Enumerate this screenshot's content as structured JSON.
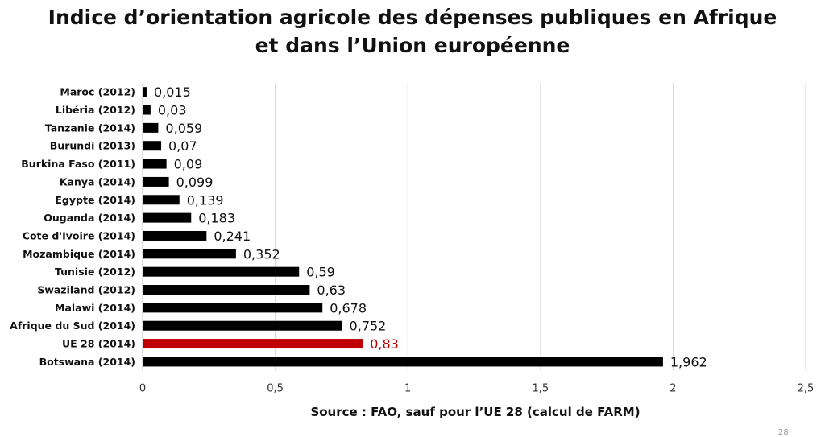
{
  "slide": {
    "title_line1": "Indice d’orientation agricole des dépenses publiques en Afrique",
    "title_line2": "et dans l’Union européenne",
    "source": "Source : FAO, sauf pour l’UE 28 (calcul de FARM)",
    "page_number": "28"
  },
  "chart_data": {
    "type": "bar",
    "orientation": "horizontal",
    "title": "Indice d’orientation agricole des dépenses publiques en Afrique et dans l’Union européenne",
    "categories": [
      "Maroc (2012)",
      "Libéria (2012)",
      "Tanzanie (2014)",
      "Burundi (2013)",
      "Burkina Faso (2011)",
      "Kanya (2014)",
      "Egypte (2014)",
      "Ouganda (2014)",
      "Cote d'Ivoire (2014)",
      "Mozambique (2014)",
      "Tunisie (2012)",
      "Swaziland (2012)",
      "Malawi (2014)",
      "Afrique du Sud (2014)",
      "UE 28 (2014)",
      "Botswana (2014)"
    ],
    "values": [
      0.015,
      0.03,
      0.059,
      0.07,
      0.09,
      0.099,
      0.139,
      0.183,
      0.241,
      0.352,
      0.59,
      0.63,
      0.678,
      0.752,
      0.83,
      1.962
    ],
    "value_labels": [
      "0,015",
      "0,03",
      "0,059",
      "0,07",
      "0,09",
      "0,099",
      "0,139",
      "0,183",
      "0,241",
      "0,352",
      "0,59",
      "0,63",
      "0,678",
      "0,752",
      "0,83",
      "1,962"
    ],
    "highlight_index": 14,
    "xlim": [
      0,
      2.5
    ],
    "xticks": [
      0,
      0.5,
      1,
      1.5,
      2,
      2.5
    ],
    "xtick_labels": [
      "0",
      "0,5",
      "1",
      "1,5",
      "2",
      "2,5"
    ],
    "grid": true,
    "colors": {
      "bar": "#000000",
      "highlight": "#c00000"
    }
  }
}
